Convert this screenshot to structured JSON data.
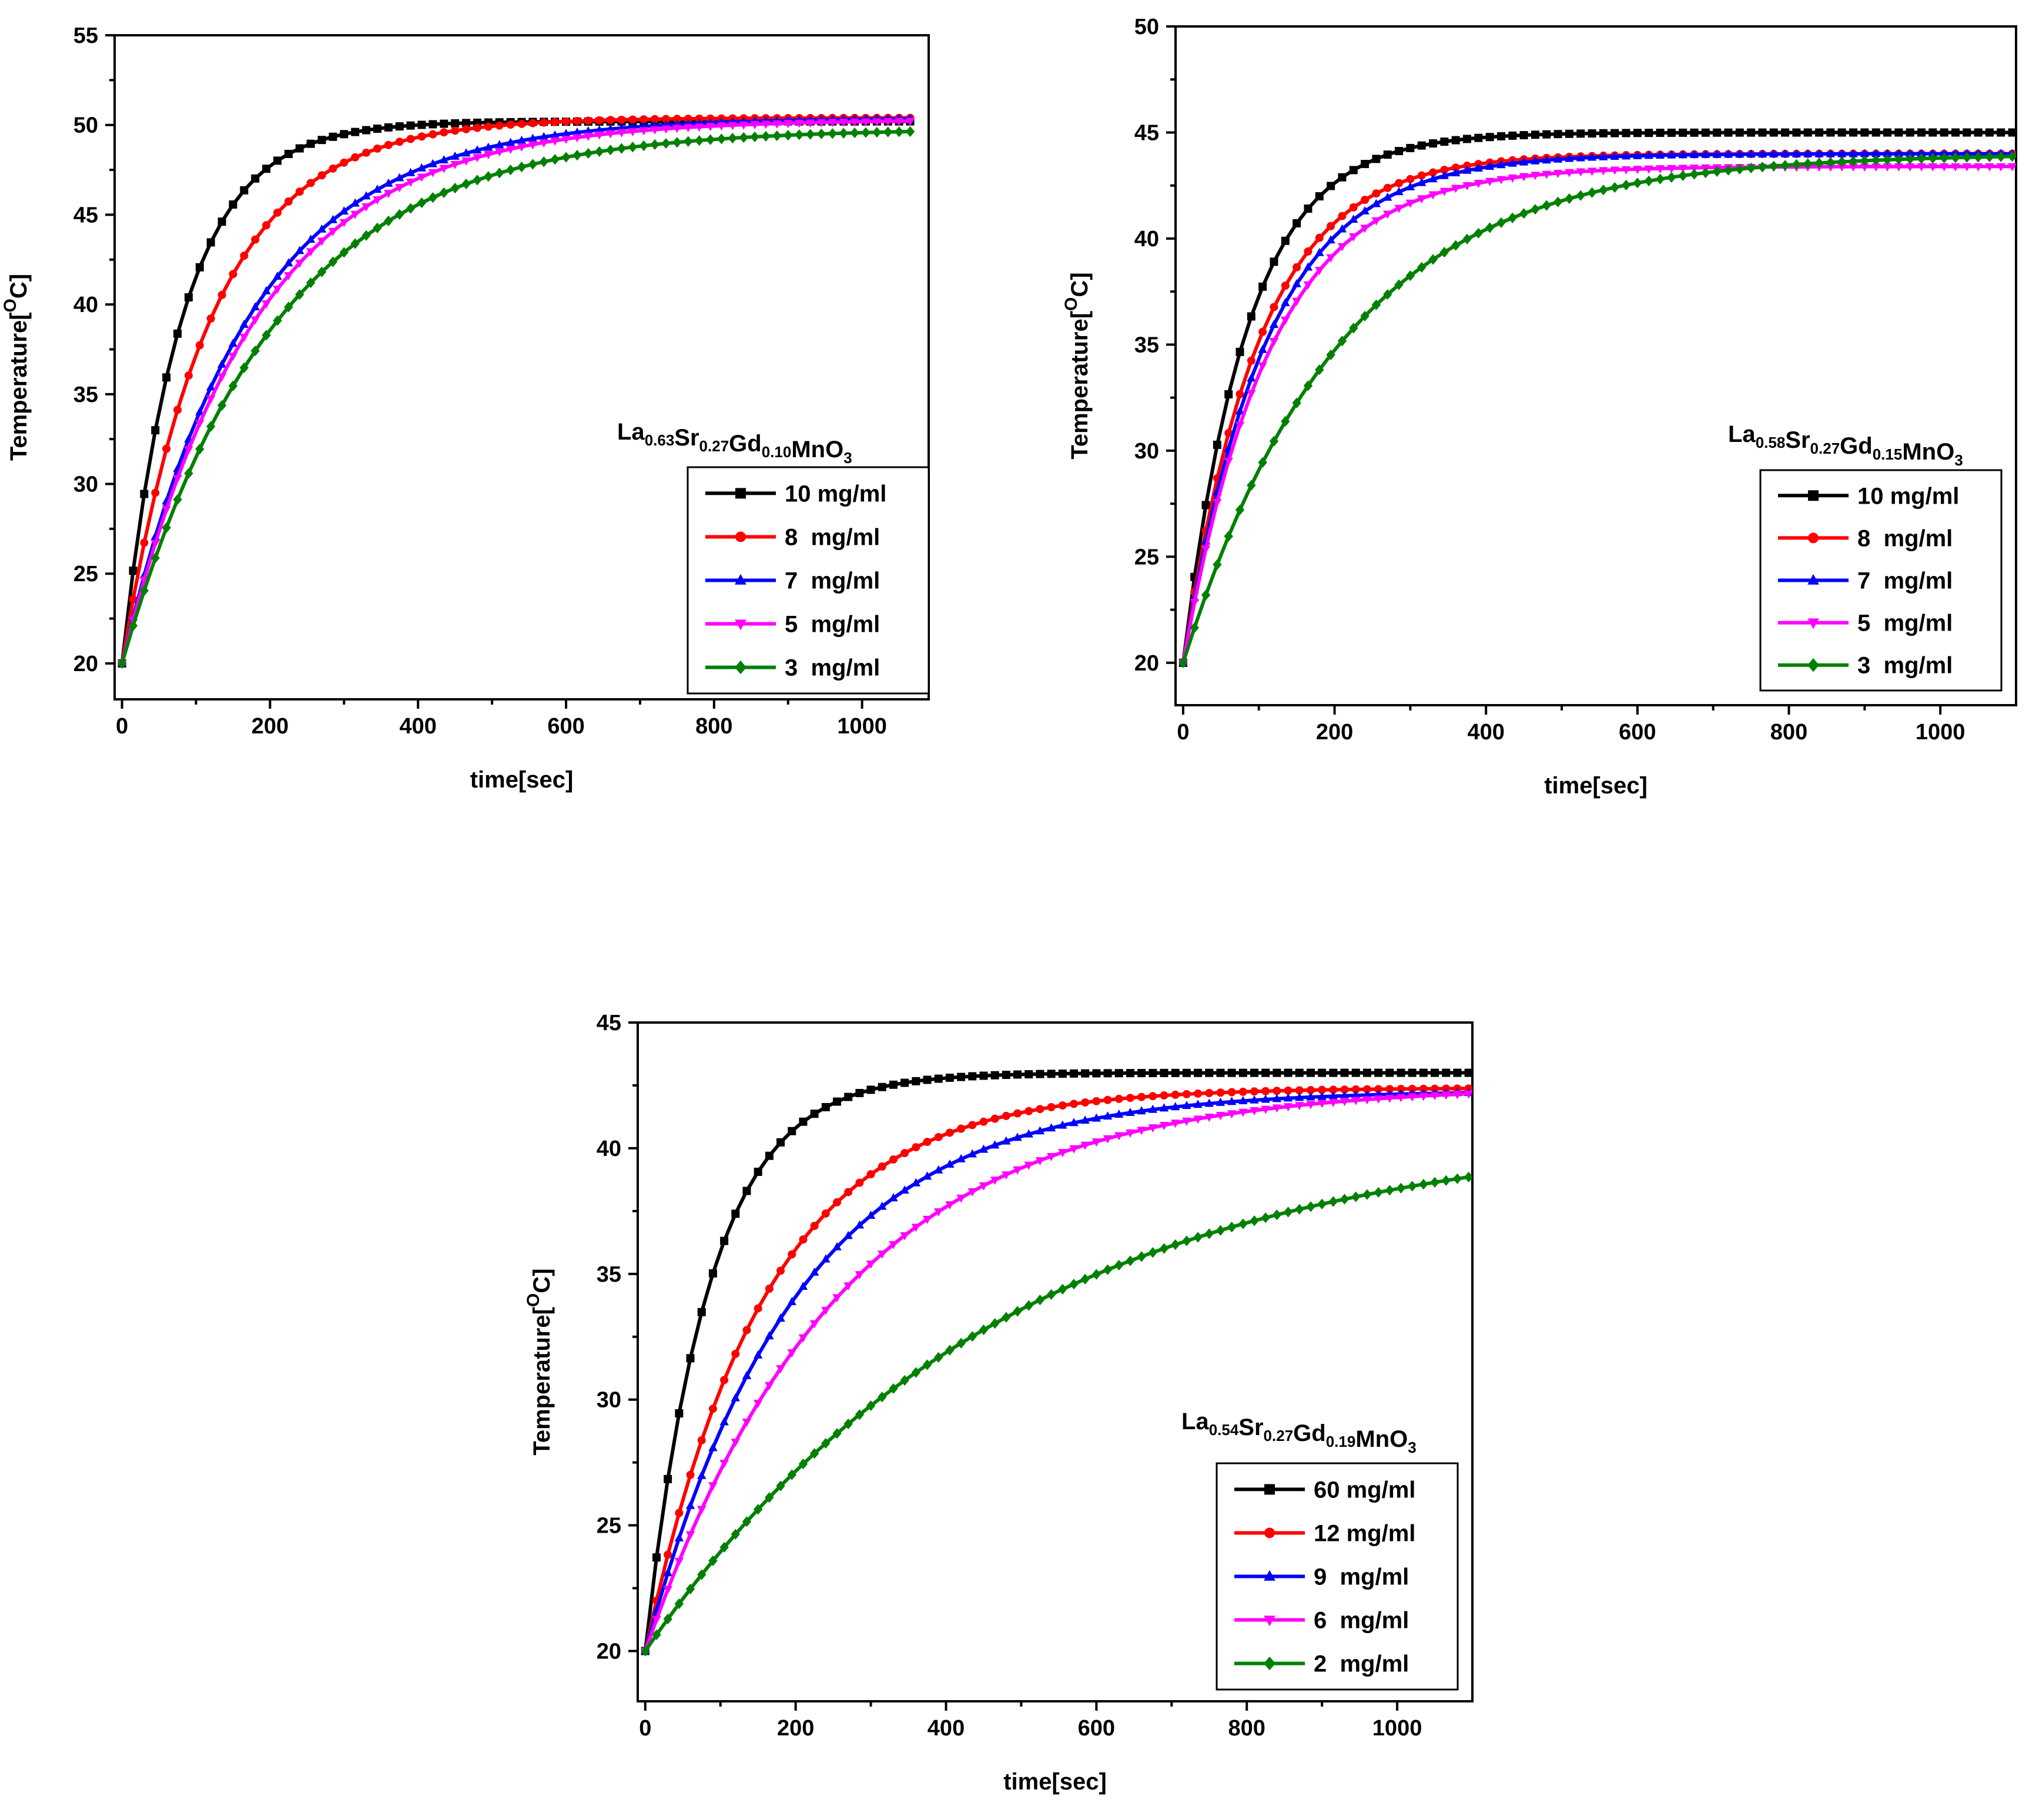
{
  "chart_data": [
    {
      "type": "line",
      "xlabel": "time[sec]",
      "ylabel": {
        "main": "Temperature[",
        "sup": "O",
        "unit": "C]"
      },
      "formula": [
        {
          "t": "La",
          "s": "0.63"
        },
        {
          "t": "Sr",
          "s": "0.27"
        },
        {
          "t": "Gd",
          "s": "0.10"
        },
        {
          "t": "MnO",
          "s": "3"
        }
      ],
      "xlim": [
        -10,
        1090
      ],
      "ylim": [
        18,
        55
      ],
      "xticks": [
        0,
        200,
        400,
        600,
        800,
        1000
      ],
      "yticks": [
        20,
        25,
        30,
        35,
        40,
        45,
        50,
        55
      ],
      "x_end": 1065,
      "series": [
        {
          "name": "10 mg/ml",
          "color": "#000000",
          "marker": "square",
          "t0": 20,
          "tmax": 50.2,
          "tau": 80
        },
        {
          "name": "8  mg/ml",
          "color": "#ff0000",
          "marker": "circle",
          "t0": 20,
          "tmax": 50.4,
          "tau": 120
        },
        {
          "name": "7  mg/ml",
          "color": "#0000ff",
          "marker": "triangle-up",
          "t0": 20,
          "tmax": 50.4,
          "tau": 170
        },
        {
          "name": "5  mg/ml",
          "color": "#ff00ff",
          "marker": "triangle-down",
          "t0": 20,
          "tmax": 50.3,
          "tau": 180
        },
        {
          "name": "3  mg/ml",
          "color": "#008000",
          "marker": "diamond",
          "t0": 20,
          "tmax": 49.8,
          "tau": 205
        }
      ]
    },
    {
      "type": "line",
      "xlabel": "time[sec]",
      "ylabel": {
        "main": "Temperature[",
        "sup": "O",
        "unit": "C]"
      },
      "formula": [
        {
          "t": "La",
          "s": "0.58"
        },
        {
          "t": "Sr",
          "s": "0.27"
        },
        {
          "t": "Gd",
          "s": "0.15"
        },
        {
          "t": "MnO",
          "s": "3"
        }
      ],
      "xlim": [
        -10,
        1100
      ],
      "ylim": [
        18,
        50
      ],
      "xticks": [
        0,
        200,
        400,
        600,
        800,
        1000
      ],
      "yticks": [
        20,
        25,
        30,
        35,
        40,
        45,
        50
      ],
      "x_end": 1100,
      "series": [
        {
          "name": "10 mg/ml",
          "color": "#000000",
          "marker": "square",
          "t0": 20,
          "tmax": 45.0,
          "tau": 85
        },
        {
          "name": "8  mg/ml",
          "color": "#ff0000",
          "marker": "circle",
          "t0": 20,
          "tmax": 44.0,
          "tau": 100
        },
        {
          "name": "7  mg/ml",
          "color": "#0000ff",
          "marker": "triangle-up",
          "t0": 20,
          "tmax": 44.0,
          "tau": 110
        },
        {
          "name": "5  mg/ml",
          "color": "#ff00ff",
          "marker": "triangle-down",
          "t0": 20,
          "tmax": 43.4,
          "tau": 115
        },
        {
          "name": "3  mg/ml",
          "color": "#008000",
          "marker": "diamond",
          "t0": 20,
          "tmax": 44.0,
          "tau": 210
        }
      ]
    },
    {
      "type": "line",
      "xlabel": "time[sec]",
      "ylabel": {
        "main": "Temperature[",
        "sup": "O",
        "unit": "C]"
      },
      "formula": [
        {
          "t": "La",
          "s": "0.54"
        },
        {
          "t": "Sr",
          "s": "0.27"
        },
        {
          "t": "Gd",
          "s": "0.19"
        },
        {
          "t": "MnO",
          "s": "3"
        }
      ],
      "xlim": [
        -10,
        1100
      ],
      "ylim": [
        18,
        45
      ],
      "xticks": [
        0,
        200,
        400,
        600,
        800,
        1000
      ],
      "yticks": [
        20,
        25,
        30,
        35,
        40,
        45
      ],
      "x_end": 1100,
      "series": [
        {
          "name": "60 mg/ml",
          "color": "#000000",
          "marker": "square",
          "t0": 20,
          "tmax": 43.0,
          "tau": 85
        },
        {
          "name": "12 mg/ml",
          "color": "#ff0000",
          "marker": "circle",
          "t0": 20,
          "tmax": 42.4,
          "tau": 160
        },
        {
          "name": "9  mg/ml",
          "color": "#0000ff",
          "marker": "triangle-up",
          "t0": 20,
          "tmax": 42.3,
          "tau": 200
        },
        {
          "name": "6  mg/ml",
          "color": "#ff00ff",
          "marker": "triangle-down",
          "t0": 20,
          "tmax": 42.5,
          "tau": 260
        },
        {
          "name": "2  mg/ml",
          "color": "#008000",
          "marker": "diamond",
          "t0": 20,
          "tmax": 41.0,
          "tau": 480
        }
      ]
    }
  ]
}
